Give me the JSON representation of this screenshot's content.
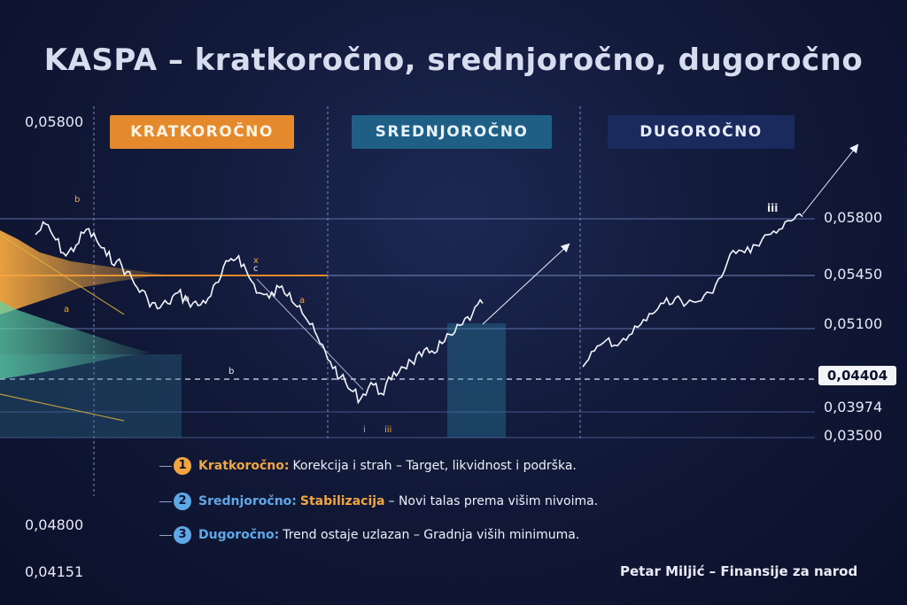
{
  "title": "KASPA – kratkoročno, srednjoročno, dugoročno",
  "sections": [
    {
      "label": "KRATKOROČNO",
      "color": "#e5892d"
    },
    {
      "label": "SREDNJOROČNO",
      "color": "#1f5f86"
    },
    {
      "label": "DUGOROČNO",
      "color": "#1a2a5c"
    }
  ],
  "y_axis_right": [
    "0,05800",
    "0,05450",
    "0,05100",
    "0,04404",
    "0,03974",
    "0,03500"
  ],
  "y_axis_left": [
    "0,05800",
    "0,04800",
    "0,04151"
  ],
  "current_price": "0,04404",
  "legend": [
    {
      "num": "1",
      "name": "Kratkoročno:",
      "highlight": "",
      "text": "Korekcija i strah – Target, likvidnost i podrška.",
      "color": "#f0a640"
    },
    {
      "num": "2",
      "name": "Srednjoročno:",
      "highlight": "Stabilizacija",
      "text": "– Novi talas prema višim nivoima.",
      "color": "#5fa8e6"
    },
    {
      "num": "3",
      "name": "Dugoročno:",
      "highlight": "",
      "text": "Trend ostaje uzlazan – Gradnja viših minimuma.",
      "color": "#5fa8e6"
    }
  ],
  "author": "Petar Miljić – Finansije za narod",
  "chart_data": {
    "type": "line",
    "title": "KASPA – kratkoročno, srednjoročno, dugoročno",
    "series": [
      {
        "values": [
          0.0565,
          0.0575,
          0.056,
          0.0545,
          0.0555,
          0.057,
          0.056,
          0.0545,
          0.054,
          0.053,
          0.0515,
          0.0505,
          0.0495,
          0.05,
          0.051,
          0.0502,
          0.0498,
          0.0505,
          0.052,
          0.054,
          0.0545,
          0.0525,
          0.051,
          0.0505,
          0.0515,
          0.051,
          0.0498,
          0.048,
          0.0462,
          0.0445,
          0.043,
          0.0418,
          0.041,
          0.0425,
          0.0415,
          0.0428,
          0.044,
          0.0445,
          0.045,
          0.0455,
          0.0462,
          0.047,
          0.048,
          0.049,
          0.05
        ]
      },
      {
        "values": [
          0.044,
          0.0455,
          0.0465,
          0.046,
          0.047,
          0.048,
          0.049,
          0.05,
          0.0505,
          0.05,
          0.0502,
          0.051,
          0.0525,
          0.055,
          0.0548,
          0.0555,
          0.0565,
          0.057,
          0.0578,
          0.0582
        ]
      }
    ],
    "levels": [
      "0,05800",
      "0,05450",
      "0,05100",
      "0,04404",
      "0,03974",
      "0,03500"
    ],
    "wave_labels": [
      "b",
      "a",
      "x",
      "c",
      "a",
      "b",
      "a",
      "i",
      "iii",
      "iii"
    ]
  }
}
